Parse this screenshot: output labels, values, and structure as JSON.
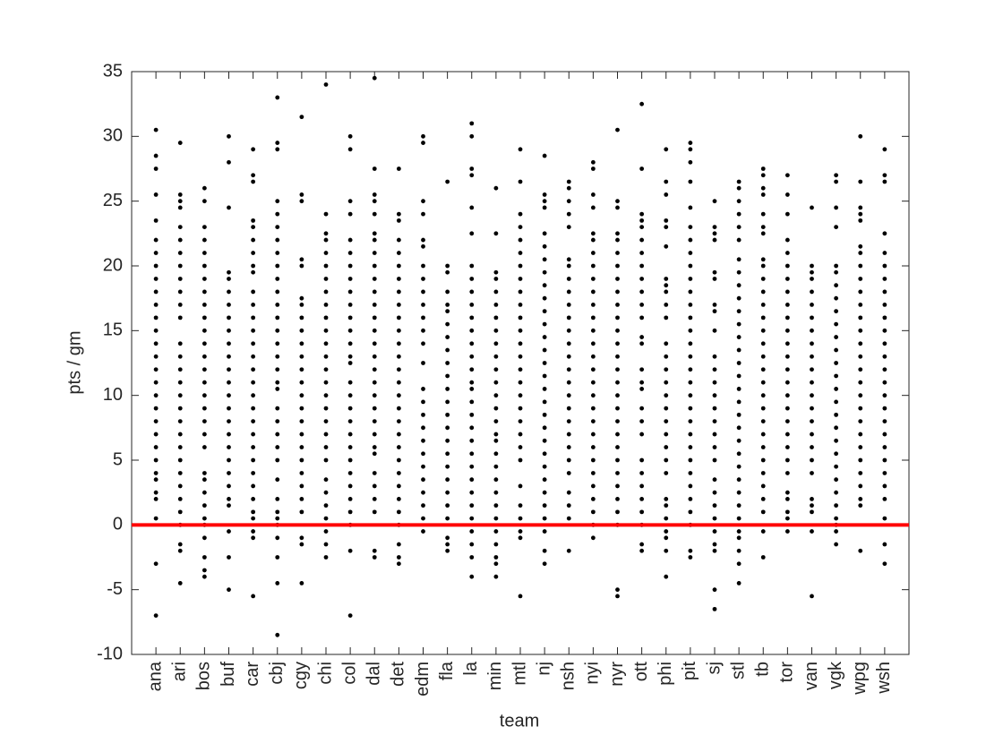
{
  "chart_data": {
    "type": "strip",
    "xlabel": "team",
    "ylabel": "pts / gm",
    "categories": [
      "ana",
      "ari",
      "bos",
      "buf",
      "car",
      "cbj",
      "cgy",
      "chi",
      "col",
      "dal",
      "det",
      "edm",
      "fla",
      "la",
      "min",
      "mtl",
      "nj",
      "nsh",
      "nyi",
      "nyr",
      "ott",
      "phi",
      "pit",
      "sj",
      "stl",
      "tb",
      "tor",
      "van",
      "vgk",
      "wpg",
      "wsh"
    ],
    "xlim": [
      0,
      32
    ],
    "values": [
      [
        -7,
        -3,
        0.5,
        2,
        2.5,
        3.5,
        4,
        5,
        6,
        7,
        8,
        9,
        10,
        11,
        12,
        13,
        14,
        15,
        16,
        17,
        18,
        19,
        20,
        21,
        22,
        23.5,
        25.5,
        27.5,
        28.5,
        30.5
      ],
      [
        -4.5,
        -2,
        -1.5,
        0,
        1,
        2,
        3,
        4,
        5,
        6,
        7,
        8,
        9,
        10,
        11,
        12,
        13,
        14,
        16,
        17,
        18,
        19,
        20,
        21,
        22,
        23,
        24.5,
        25,
        25.5,
        29.5
      ],
      [
        -4,
        -3.5,
        -2.5,
        -1,
        0,
        0.5,
        1.5,
        2.5,
        3.5,
        4,
        6,
        7,
        8,
        9,
        10,
        11,
        12,
        13,
        14,
        15,
        16,
        17,
        18,
        19,
        20,
        21,
        22,
        23,
        25,
        26
      ],
      [
        -5,
        -2.5,
        -0.5,
        1.5,
        2,
        3,
        4,
        5,
        6,
        7,
        8,
        9,
        10,
        11,
        12,
        13,
        14,
        15,
        16,
        17,
        18,
        19,
        19.5,
        24.5,
        28,
        30
      ],
      [
        -5.5,
        -1,
        -0.5,
        0.5,
        1,
        2,
        3,
        4,
        5,
        6,
        7,
        8,
        9,
        10,
        11,
        12,
        13,
        14,
        15,
        16,
        17,
        18,
        19.5,
        20,
        21,
        22,
        23,
        23.5,
        26.5,
        27,
        29
      ],
      [
        -8.5,
        -4.5,
        -2.5,
        -1,
        0,
        0.5,
        1,
        2,
        3.5,
        5,
        6,
        7,
        8,
        9,
        10.5,
        11,
        12,
        13,
        14,
        15,
        16,
        17,
        18,
        19,
        20,
        21,
        22,
        23,
        24,
        25,
        29,
        29.5,
        33
      ],
      [
        -4.5,
        -1.5,
        -1,
        1,
        2,
        3,
        4,
        5,
        6,
        7,
        8,
        9,
        10,
        11,
        12,
        13,
        14,
        15,
        16,
        17,
        17.5,
        20,
        20.5,
        25,
        25.5,
        31.5
      ],
      [
        -2.5,
        -1.5,
        -0.5,
        0.5,
        1.5,
        2.5,
        3.5,
        5,
        6,
        7,
        8,
        9,
        10,
        11,
        12,
        13,
        14,
        15,
        16,
        17,
        18,
        19,
        20,
        21,
        22,
        22.5,
        24,
        34
      ],
      [
        -7,
        -2,
        0,
        1,
        2,
        3,
        4,
        5,
        6,
        7,
        8,
        9,
        10,
        11,
        12.5,
        13,
        14,
        15,
        16,
        17,
        18,
        19,
        20,
        21,
        22,
        24,
        25,
        29,
        30
      ],
      [
        -2.5,
        -2,
        1,
        2,
        3,
        4,
        5.5,
        6,
        7,
        8,
        9,
        10,
        11,
        12,
        13,
        14,
        15,
        16,
        17,
        18,
        19,
        20,
        21,
        22,
        22.5,
        24,
        25,
        25.5,
        27.5,
        34.5
      ],
      [
        -3,
        -2.5,
        -1.5,
        0,
        1,
        2,
        3,
        4,
        5,
        6,
        7,
        8,
        9,
        10,
        11,
        12,
        13,
        14,
        15,
        16,
        17,
        18,
        19,
        20,
        21,
        22,
        23.5,
        24,
        27.5
      ],
      [
        -0.5,
        0.5,
        1.5,
        2.5,
        3.5,
        4.5,
        5.5,
        6.5,
        7.5,
        8.5,
        9.5,
        10.5,
        12.5,
        14,
        15,
        16,
        17,
        18,
        19,
        20,
        21.5,
        22,
        24,
        25,
        29.5,
        30
      ],
      [
        -2,
        -1.5,
        -1,
        0.5,
        1.5,
        2.5,
        3.5,
        4.5,
        5.5,
        6.5,
        7.5,
        8.5,
        9.5,
        10.5,
        11.5,
        12.5,
        13.5,
        14.5,
        15.5,
        16.5,
        17,
        18,
        19.5,
        20,
        26.5
      ],
      [
        -4,
        -2.5,
        -1.5,
        -0.5,
        0.5,
        1.5,
        2.5,
        3.5,
        4.5,
        5.5,
        6.5,
        7.5,
        8.5,
        9.5,
        10.5,
        11,
        12,
        13,
        14,
        15,
        16,
        17,
        18,
        19,
        20,
        22.5,
        24.5,
        27,
        27.5,
        30,
        31
      ],
      [
        -4,
        -3,
        -2.5,
        -1.5,
        -0.5,
        0.5,
        1.5,
        2.5,
        3.5,
        4.5,
        5.5,
        6.5,
        7,
        8,
        9,
        10,
        11,
        12,
        13,
        14,
        15,
        16,
        17,
        18,
        19,
        19.5,
        22.5,
        26
      ],
      [
        -5.5,
        -1,
        -0.5,
        0.5,
        1.5,
        3,
        5,
        6,
        7,
        8,
        9,
        10,
        11,
        12,
        13,
        14,
        15,
        16,
        17,
        18,
        19,
        20,
        21,
        22,
        23,
        24,
        26.5,
        29
      ],
      [
        -3,
        -2,
        -0.5,
        0.5,
        1.5,
        2.5,
        3.5,
        4.5,
        5.5,
        6.5,
        7.5,
        8.5,
        9.5,
        10.5,
        11.5,
        12.5,
        13.5,
        14.5,
        15.5,
        16.5,
        17.5,
        18.5,
        19.5,
        20.5,
        21.5,
        22.5,
        24.5,
        25,
        25.5,
        28.5
      ],
      [
        -2,
        0.5,
        1.5,
        2.5,
        4,
        5,
        6,
        7,
        8,
        9,
        10,
        11,
        12,
        13,
        14,
        15,
        16,
        17,
        18,
        19,
        20,
        20.5,
        23,
        24,
        25,
        26,
        26.5
      ],
      [
        -1,
        0,
        1,
        2,
        3,
        4,
        5,
        6,
        7,
        8,
        9,
        10,
        11,
        12,
        13,
        14,
        15,
        16,
        17,
        18,
        19,
        20,
        21,
        22,
        22.5,
        24.5,
        25.5,
        27.5,
        28
      ],
      [
        -5.5,
        -5,
        0,
        1,
        2,
        3,
        4,
        5,
        6,
        7,
        8,
        9,
        10,
        11,
        12,
        13,
        14,
        15,
        16,
        17,
        18,
        19,
        20,
        21,
        22,
        22.5,
        24.5,
        25,
        30.5
      ],
      [
        -2,
        -1.5,
        0,
        1,
        2,
        3,
        4,
        5,
        7,
        8,
        9,
        10.5,
        11,
        12,
        14,
        14.5,
        16,
        17,
        18,
        19,
        20,
        21,
        22,
        23,
        23.5,
        24,
        27.5,
        32.5
      ],
      [
        -4,
        -2,
        -1,
        -0.5,
        0.5,
        1.5,
        2,
        4,
        5,
        6,
        7,
        8,
        9,
        10,
        11,
        12,
        13,
        14,
        16,
        17,
        18,
        18.5,
        19,
        21.5,
        23,
        23.5,
        25.5,
        26.5,
        29
      ],
      [
        -2.5,
        -2,
        0,
        1,
        2,
        3,
        4,
        5,
        6,
        7,
        8,
        9,
        10,
        11,
        12,
        13,
        14,
        15,
        16,
        17,
        18,
        19,
        20,
        21,
        22,
        23,
        24.5,
        26.5,
        28,
        29,
        29.5
      ],
      [
        -6.5,
        -5,
        -2,
        -1.5,
        -0.5,
        0.5,
        1.5,
        2.5,
        3.5,
        5,
        6,
        7,
        8,
        9,
        10,
        11,
        12,
        13,
        15,
        16.5,
        17,
        19,
        19.5,
        22,
        22.5,
        23,
        25
      ],
      [
        -4.5,
        -3,
        -2,
        -1,
        -0.5,
        0.5,
        1.5,
        2.5,
        3.5,
        4.5,
        5.5,
        6.5,
        7.5,
        8.5,
        9.5,
        10.5,
        11.5,
        12.5,
        13.5,
        14.5,
        15.5,
        16.5,
        17.5,
        18.5,
        19.5,
        20.5,
        22,
        23,
        24,
        25,
        26,
        26.5
      ],
      [
        -2.5,
        -0.5,
        1,
        2,
        3,
        4,
        5,
        6,
        7,
        8,
        9,
        10,
        11,
        12,
        13,
        14,
        15,
        16,
        17,
        18,
        19,
        20,
        20.5,
        22.5,
        23,
        24,
        25.5,
        26,
        27,
        27.5
      ],
      [
        -0.5,
        0.5,
        1,
        2,
        2.5,
        4,
        5,
        6,
        7,
        8,
        9,
        10,
        11,
        12,
        13,
        14,
        15,
        16,
        17,
        18,
        19,
        20,
        21,
        22,
        24,
        25.5,
        27
      ],
      [
        -5.5,
        -0.5,
        1,
        1.5,
        2,
        4,
        5,
        6,
        7,
        8,
        9,
        10,
        11,
        12,
        13,
        14,
        15,
        16,
        17,
        18,
        19,
        19.5,
        20,
        24.5
      ],
      [
        -1.5,
        -0.5,
        0,
        0.5,
        1.5,
        2.5,
        3.5,
        4.5,
        5.5,
        6.5,
        7.5,
        8.5,
        9.5,
        10.5,
        11.5,
        12.5,
        13.5,
        14.5,
        15.5,
        16.5,
        17.5,
        18.5,
        19.5,
        20,
        23,
        24.5,
        26.5,
        27
      ],
      [
        -2,
        1.5,
        2,
        3,
        4,
        5,
        6,
        7,
        8,
        9,
        10,
        11,
        12,
        13,
        14,
        15,
        16,
        17,
        18,
        19,
        20,
        21,
        21.5,
        23.5,
        24,
        24.5,
        26.5,
        30
      ],
      [
        -3,
        -1.5,
        0.5,
        2,
        3,
        4,
        5,
        6,
        7,
        8,
        9,
        10,
        11,
        12,
        13,
        14,
        15,
        16,
        17,
        18,
        19,
        20,
        21,
        22.5,
        26.5,
        27,
        29
      ]
    ],
    "color": "#000000",
    "reference_line": {
      "y": 0,
      "color": "#ff0000"
    },
    "ylim": [
      -10,
      35
    ],
    "yticks": [
      -10,
      -5,
      0,
      5,
      10,
      15,
      20,
      25,
      30,
      35
    ]
  }
}
